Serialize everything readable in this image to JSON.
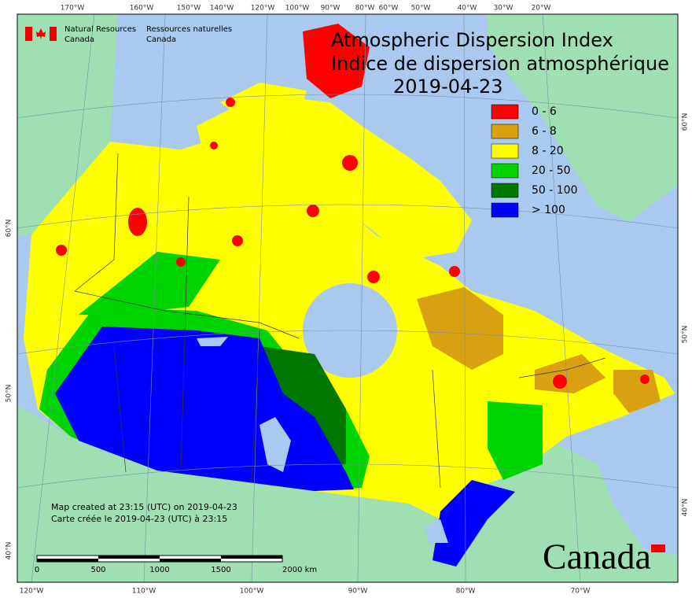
{
  "header": {
    "agency_en": [
      "Natural Resources",
      "Canada"
    ],
    "agency_fr": [
      "Ressources naturelles",
      "Canada"
    ]
  },
  "title": {
    "en": "Atmospheric Dispersion Index",
    "fr": "Indice de dispersion atmosphérique",
    "date": "2019-04-23"
  },
  "legend": {
    "items": [
      {
        "label": "0 - 6",
        "color": "#ff0000"
      },
      {
        "label": "6 - 8",
        "color": "#d9a012"
      },
      {
        "label": "8 - 20",
        "color": "#ffff00"
      },
      {
        "label": "20 - 50",
        "color": "#00d400"
      },
      {
        "label": "50 - 100",
        "color": "#007800"
      },
      {
        "label": "> 100",
        "color": "#0000ff"
      }
    ]
  },
  "notes": [
    "Map created at 23:15 (UTC) on 2019-04-23",
    "Carte créée le 2019-04-23 (UTC) à 23:15"
  ],
  "scale_bar": [
    "0",
    "500",
    "1000",
    "1500",
    "2000 km"
  ],
  "graticule": {
    "top": [
      "170°W",
      "160°W",
      "150°W",
      "140°W",
      "120°W",
      "100°W",
      "90°W",
      "80°W",
      "60°W",
      "50°W",
      "40°W",
      "30°W",
      "20°W"
    ],
    "bottom": [
      "120°W",
      "110°W",
      "100°W",
      "90°W",
      "80°W",
      "70°W"
    ],
    "left": [
      "60°N",
      "50°N",
      "40°N"
    ],
    "right": [
      "60°N",
      "50°N",
      "40°N"
    ]
  },
  "wordmark": "Canada"
}
